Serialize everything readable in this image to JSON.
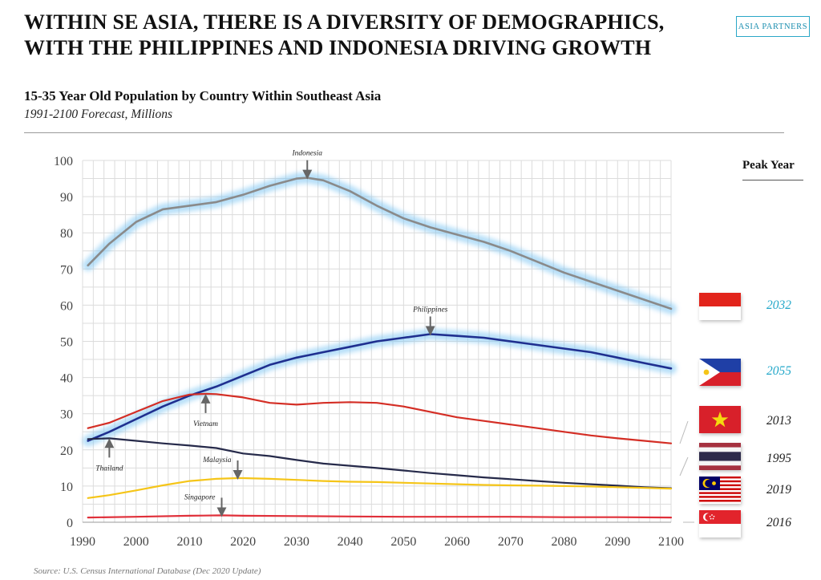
{
  "header": {
    "title_line1": "WITHIN SE ASIA, THERE IS A DIVERSITY OF DEMOGRAPHICS,",
    "title_line2": "WITH THE PHILIPPINES AND INDONESIA DRIVING GROWTH",
    "logo_text": "ASIA PARTNERS"
  },
  "chart_title": "15-35 Year Old Population by Country Within Southeast Asia",
  "chart_subtitle": "1991-2100 Forecast, Millions",
  "source": "Source: U.S. Census International Database (Dec 2020 Update)",
  "peak": {
    "header": "Peak Year",
    "items": [
      {
        "country": "Indonesia",
        "year": "2032",
        "highlight": true
      },
      {
        "country": "Philippines",
        "year": "2055",
        "highlight": true
      },
      {
        "country": "Vietnam",
        "year": "2013",
        "highlight": false
      },
      {
        "country": "Thailand",
        "year": "1995",
        "highlight": false
      },
      {
        "country": "Malaysia",
        "year": "2019",
        "highlight": false
      },
      {
        "country": "Singapore",
        "year": "2016",
        "highlight": false
      }
    ]
  },
  "colors": {
    "indonesia": "#8a8a8a",
    "philippines": "#1f2f8f",
    "vietnam": "#d42e25",
    "thailand": "#262a4a",
    "malaysia": "#f5c518",
    "singapore": "#e0303a",
    "glow": "#7cc4f2",
    "peak_highlight": "#22a7c9",
    "grid": "#dcdcdc"
  },
  "chart_data": {
    "type": "line",
    "xlim": [
      1990,
      2100
    ],
    "ylim": [
      0,
      100
    ],
    "x_ticks": [
      1990,
      2000,
      2010,
      2020,
      2030,
      2040,
      2050,
      2060,
      2070,
      2080,
      2090,
      2100
    ],
    "y_ticks": [
      0,
      10,
      20,
      30,
      40,
      50,
      60,
      70,
      80,
      90,
      100
    ],
    "series": [
      {
        "name": "Indonesia",
        "key": "indonesia",
        "glow": true,
        "x": [
          1991,
          1995,
          2000,
          2005,
          2010,
          2015,
          2020,
          2025,
          2030,
          2032,
          2035,
          2040,
          2045,
          2050,
          2055,
          2060,
          2065,
          2070,
          2075,
          2080,
          2085,
          2090,
          2095,
          2100
        ],
        "y": [
          71,
          77,
          83,
          86.5,
          87.5,
          88.5,
          90.5,
          93,
          95,
          95.2,
          94.5,
          91.5,
          87.5,
          84,
          81.5,
          79.5,
          77.5,
          75,
          72,
          69,
          66.5,
          64,
          61.5,
          59
        ]
      },
      {
        "name": "Philippines",
        "key": "philippines",
        "glow": true,
        "x": [
          1991,
          1995,
          2000,
          2005,
          2010,
          2015,
          2020,
          2025,
          2030,
          2035,
          2040,
          2045,
          2050,
          2055,
          2060,
          2065,
          2070,
          2075,
          2080,
          2085,
          2090,
          2095,
          2100
        ],
        "y": [
          22.5,
          25,
          28.5,
          32,
          35,
          37.5,
          40.5,
          43.5,
          45.5,
          47,
          48.5,
          50,
          51,
          52,
          51.5,
          51,
          50,
          49,
          48,
          47,
          45.5,
          44,
          42.5
        ]
      },
      {
        "name": "Vietnam",
        "key": "vietnam",
        "glow": false,
        "x": [
          1991,
          1995,
          2000,
          2005,
          2010,
          2013,
          2015,
          2020,
          2025,
          2030,
          2035,
          2040,
          2045,
          2050,
          2055,
          2060,
          2065,
          2070,
          2075,
          2080,
          2085,
          2090,
          2095,
          2100
        ],
        "y": [
          26,
          27.5,
          30.5,
          33.5,
          35.3,
          35.5,
          35.4,
          34.5,
          33,
          32.5,
          33,
          33.2,
          33,
          32,
          30.5,
          29,
          28,
          27,
          26,
          25,
          24,
          23.2,
          22.5,
          21.8
        ]
      },
      {
        "name": "Thailand",
        "key": "thailand",
        "glow": false,
        "x": [
          1991,
          1995,
          2000,
          2005,
          2010,
          2015,
          2020,
          2025,
          2030,
          2035,
          2040,
          2045,
          2050,
          2055,
          2060,
          2065,
          2070,
          2075,
          2080,
          2085,
          2090,
          2095,
          2100
        ],
        "y": [
          23,
          23.2,
          22.5,
          21.8,
          21.2,
          20.5,
          19,
          18.3,
          17.2,
          16.2,
          15.6,
          15,
          14.3,
          13.6,
          13,
          12.4,
          11.9,
          11.4,
          10.9,
          10.5,
          10.1,
          9.7,
          9.4
        ]
      },
      {
        "name": "Malaysia",
        "key": "malaysia",
        "glow": false,
        "x": [
          1991,
          1995,
          2000,
          2005,
          2010,
          2015,
          2019,
          2020,
          2025,
          2030,
          2035,
          2040,
          2045,
          2050,
          2055,
          2060,
          2065,
          2070,
          2075,
          2080,
          2085,
          2090,
          2095,
          2100
        ],
        "y": [
          6.7,
          7.5,
          8.8,
          10.2,
          11.4,
          12,
          12.2,
          12.2,
          12,
          11.7,
          11.4,
          11.2,
          11.1,
          10.9,
          10.7,
          10.5,
          10.3,
          10.2,
          10.1,
          10,
          9.9,
          9.7,
          9.5,
          9.3
        ]
      },
      {
        "name": "Singapore",
        "key": "singapore",
        "glow": false,
        "x": [
          1991,
          2000,
          2010,
          2016,
          2020,
          2030,
          2040,
          2050,
          2060,
          2070,
          2080,
          2090,
          2100
        ],
        "y": [
          1.3,
          1.5,
          1.8,
          1.9,
          1.8,
          1.7,
          1.6,
          1.5,
          1.5,
          1.5,
          1.4,
          1.4,
          1.3
        ]
      }
    ],
    "annotations": [
      {
        "text": "Indonesia",
        "x": 2032,
        "y": 95.2,
        "arrow": "down",
        "for": "indonesia"
      },
      {
        "text": "Philippines",
        "x": 2055,
        "y": 52,
        "arrow": "down",
        "for": "philippines"
      },
      {
        "text": "Vietnam",
        "x": 2013,
        "y": 35.5,
        "arrow": "up",
        "for": "vietnam"
      },
      {
        "text": "Thailand",
        "x": 1995,
        "y": 23.2,
        "arrow": "up",
        "for": "thailand"
      },
      {
        "text": "Malaysia",
        "x": 2019,
        "y": 12.2,
        "arrow": "down",
        "for": "malaysia"
      },
      {
        "text": "Singapore",
        "x": 2016,
        "y": 1.9,
        "arrow": "down",
        "for": "singapore"
      }
    ]
  }
}
